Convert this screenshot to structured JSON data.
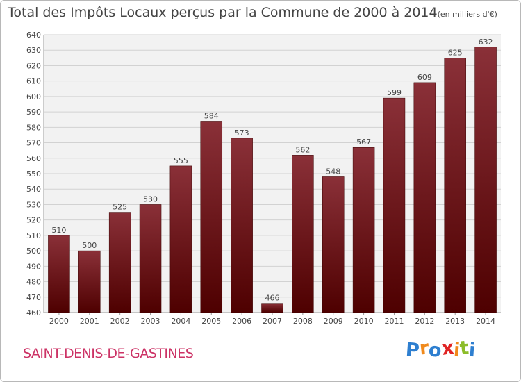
{
  "chart_data": {
    "type": "bar",
    "title": "Total des Impôts Locaux perçus par la Commune de 2000 à 2014",
    "unit_label": "(en milliers d'€)",
    "categories": [
      "2000",
      "2001",
      "2002",
      "2003",
      "2004",
      "2005",
      "2006",
      "2007",
      "2008",
      "2009",
      "2010",
      "2011",
      "2012",
      "2013",
      "2014"
    ],
    "values": [
      510,
      500,
      525,
      530,
      555,
      584,
      573,
      466,
      562,
      548,
      567,
      599,
      609,
      625,
      632
    ],
    "ylim": [
      460,
      640
    ],
    "yticks": [
      460,
      470,
      480,
      490,
      500,
      510,
      520,
      530,
      540,
      550,
      560,
      570,
      580,
      590,
      600,
      610,
      620,
      630,
      640
    ],
    "xlabel": "",
    "ylabel": "",
    "grid": true,
    "bar_color_top": "#8a3038",
    "bar_color_bottom": "#4e0000"
  },
  "footer": {
    "commune": "SAINT-DENIS-DE-GASTINES",
    "commune_color": "#cc3366"
  },
  "logo": {
    "letters": [
      "P",
      "r",
      "o",
      "x",
      "i",
      "t",
      "i"
    ],
    "colors": [
      "#2e7fd0",
      "#f08a1c",
      "#2e7fd0",
      "#e02424",
      "#f08a1c",
      "#8cbd2a",
      "#2e7fd0"
    ]
  }
}
